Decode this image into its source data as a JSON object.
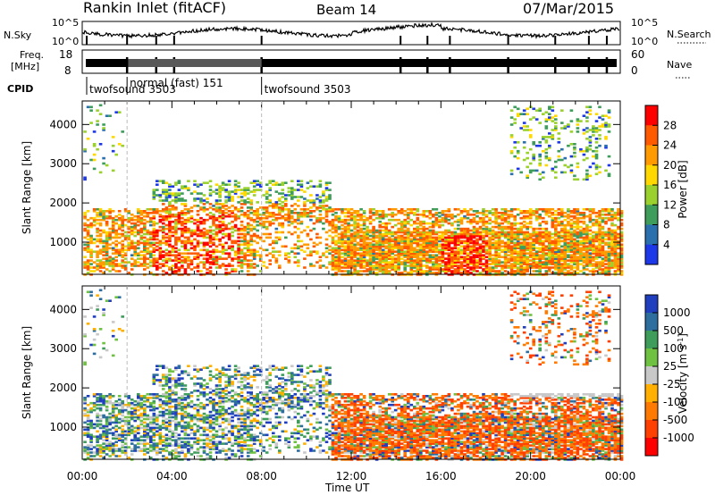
{
  "header": {
    "station": "Rankin Inlet (fitACF)",
    "beam": "Beam 14",
    "date": "07/Mar/2015"
  },
  "strips": {
    "nsky_label": "N.Sky",
    "nsky_ticks": [
      "10^5",
      "10^0"
    ],
    "nsearch_label": "N.Search",
    "nsearch_ticks": [
      "10^5",
      "10^0"
    ],
    "freq_label_1": "Freq.",
    "freq_label_2": "[MHz]",
    "freq_ticks": [
      "18",
      "8"
    ],
    "nave_label": "Nave",
    "nave_ticks": [
      "60",
      "0"
    ],
    "cpid_label": "CPID"
  },
  "cpid_segments": [
    {
      "label": "twofsound 3503",
      "start_hour": 0.0,
      "end_hour": 2.0
    },
    {
      "label": "normal (fast) 151",
      "start_hour": 2.0,
      "end_hour": 8.0
    },
    {
      "label": "twofsound 3503",
      "start_hour": 8.0,
      "end_hour": 24.0
    }
  ],
  "chart_data": [
    {
      "type": "heatmap",
      "panel": "power",
      "ylabel": "Slant Range [km]",
      "xlabel": "",
      "y_ticks": [
        1000,
        2000,
        3000,
        4000
      ],
      "ylim": [
        180,
        4600
      ],
      "xlim": [
        0,
        24
      ],
      "colorbar": {
        "label": "Power [dB]",
        "ticks": [
          "28",
          "24",
          "20",
          "16",
          "12",
          "8",
          "4"
        ],
        "colors": [
          "#ff0000",
          "#ff5a00",
          "#ff9a00",
          "#ffd800",
          "#9ad12d",
          "#3e9d5a",
          "#2a6fae",
          "#1d38e8"
        ]
      }
    },
    {
      "type": "heatmap",
      "panel": "velocity",
      "ylabel": "Slant Range [km]",
      "xlabel": "Time UT",
      "x_ticks": [
        "00:00",
        "04:00",
        "08:00",
        "12:00",
        "16:00",
        "20:00",
        "00:00"
      ],
      "y_ticks": [
        1000,
        2000,
        3000,
        4000
      ],
      "ylim": [
        180,
        4600
      ],
      "xlim": [
        0,
        24
      ],
      "colorbar": {
        "label": "Velocity [m s",
        "label_sup": "-1",
        "label_close": "]",
        "ticks": [
          "1000",
          "500",
          "100",
          "25",
          "-25",
          "-100",
          "-500",
          "-1000"
        ],
        "colors": [
          "#1f3fbf",
          "#2d6e9e",
          "#3e9d5a",
          "#6fc142",
          "#c8c8c8",
          "#ffb000",
          "#ff7a00",
          "#ff4000",
          "#ff0000"
        ]
      }
    }
  ]
}
